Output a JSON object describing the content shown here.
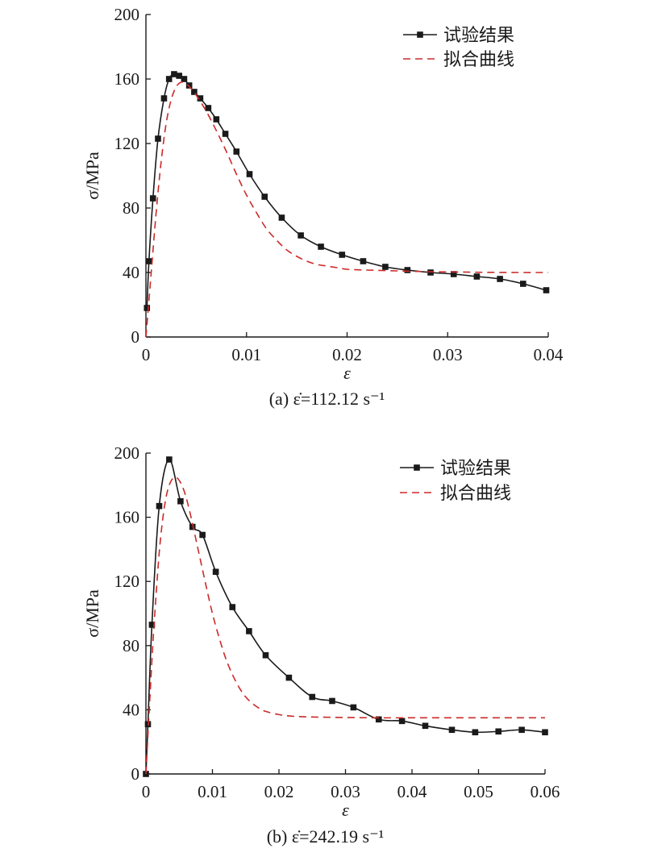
{
  "chart_data": [
    {
      "type": "line",
      "caption": "(a) ε̇=112.12 s⁻¹",
      "xlabel": "ε",
      "ylabel": "σ/MPa",
      "xlim": [
        0,
        0.04
      ],
      "ylim": [
        0,
        200
      ],
      "xticks": [
        0,
        0.01,
        0.02,
        0.03,
        0.04
      ],
      "xtick_labels": [
        "0",
        "0.01",
        "0.02",
        "0.03",
        "0.04"
      ],
      "yticks": [
        0,
        40,
        80,
        120,
        160,
        200
      ],
      "ytick_labels": [
        "0",
        "40",
        "80",
        "120",
        "160",
        "200"
      ],
      "legend_position": "top-right",
      "series": [
        {
          "name": "试验结果",
          "style": "solid-square-markers",
          "color": "#1a1a1a",
          "x": [
            0.0001,
            0.0003,
            0.0007,
            0.0012,
            0.0018,
            0.0023,
            0.0028,
            0.0033,
            0.0038,
            0.0043,
            0.0048,
            0.0054,
            0.0062,
            0.007,
            0.0079,
            0.009,
            0.0103,
            0.0118,
            0.0135,
            0.0154,
            0.0174,
            0.0195,
            0.0216,
            0.0238,
            0.026,
            0.0283,
            0.0306,
            0.0329,
            0.0352,
            0.0375,
            0.0398
          ],
          "y": [
            18,
            47,
            86,
            123,
            148,
            160,
            163,
            162,
            160,
            156,
            152,
            148,
            142,
            135,
            126,
            115,
            101,
            87,
            74,
            63,
            56,
            51,
            47,
            43.5,
            41.5,
            40,
            39,
            37.5,
            36,
            33,
            29
          ]
        },
        {
          "name": "拟合曲线",
          "style": "dashed",
          "color": "#cc2a2a",
          "x": [
            0,
            0.0005,
            0.001,
            0.0015,
            0.002,
            0.0025,
            0.003,
            0.0035,
            0.004,
            0.0045,
            0.005,
            0.006,
            0.007,
            0.008,
            0.009,
            0.01,
            0.011,
            0.012,
            0.013,
            0.014,
            0.015,
            0.016,
            0.017,
            0.018,
            0.019,
            0.02,
            0.022,
            0.025,
            0.028,
            0.031,
            0.034,
            0.037,
            0.04
          ],
          "y": [
            0,
            38,
            76,
            108,
            132,
            147,
            155,
            158,
            157,
            154,
            150,
            140,
            128,
            115,
            101,
            88,
            77,
            67,
            60,
            54,
            50,
            47,
            45,
            44,
            43,
            42,
            41.5,
            41,
            40.5,
            40.3,
            40.1,
            40,
            40
          ]
        }
      ]
    },
    {
      "type": "line",
      "caption": "(b) ε̇=242.19 s⁻¹",
      "xlabel": "ε",
      "ylabel": "σ/MPa",
      "xlim": [
        0,
        0.06
      ],
      "ylim": [
        0,
        200
      ],
      "xticks": [
        0,
        0.01,
        0.02,
        0.03,
        0.04,
        0.05,
        0.06
      ],
      "xtick_labels": [
        "0",
        "0.01",
        "0.02",
        "0.03",
        "0.04",
        "0.05",
        "0.06"
      ],
      "yticks": [
        0,
        40,
        80,
        120,
        160,
        200
      ],
      "ytick_labels": [
        "0",
        "40",
        "80",
        "120",
        "160",
        "200"
      ],
      "legend_position": "top-right",
      "series": [
        {
          "name": "试验结果",
          "style": "solid-square-markers",
          "color": "#1a1a1a",
          "x": [
            0,
            0.0003,
            0.0009,
            0.002,
            0.0035,
            0.0052,
            0.007,
            0.0085,
            0.0105,
            0.013,
            0.0155,
            0.018,
            0.0215,
            0.025,
            0.028,
            0.0312,
            0.035,
            0.0385,
            0.042,
            0.046,
            0.0495,
            0.053,
            0.0565,
            0.06
          ],
          "y": [
            0,
            31,
            93,
            167,
            196,
            170,
            154,
            149,
            126,
            104,
            89,
            74,
            60,
            48,
            45.5,
            41.5,
            34,
            33,
            30,
            27.5,
            26,
            26.5,
            27.5,
            26
          ]
        },
        {
          "name": "拟合曲线",
          "style": "dashed",
          "color": "#cc2a2a",
          "x": [
            0,
            0.0005,
            0.001,
            0.0015,
            0.002,
            0.0025,
            0.003,
            0.0035,
            0.004,
            0.0045,
            0.005,
            0.0055,
            0.006,
            0.0065,
            0.007,
            0.008,
            0.009,
            0.01,
            0.011,
            0.012,
            0.013,
            0.014,
            0.015,
            0.016,
            0.017,
            0.018,
            0.02,
            0.022,
            0.025,
            0.03,
            0.035,
            0.04,
            0.045,
            0.05,
            0.055,
            0.06
          ],
          "y": [
            0,
            40,
            78,
            110,
            138,
            158,
            172,
            180,
            184,
            185,
            183,
            179,
            173,
            165,
            156,
            137,
            118,
            100,
            85,
            72,
            62,
            54,
            48,
            44,
            41,
            39,
            37,
            36,
            35.5,
            35.2,
            35,
            35,
            35,
            35,
            35,
            35
          ]
        }
      ]
    }
  ]
}
